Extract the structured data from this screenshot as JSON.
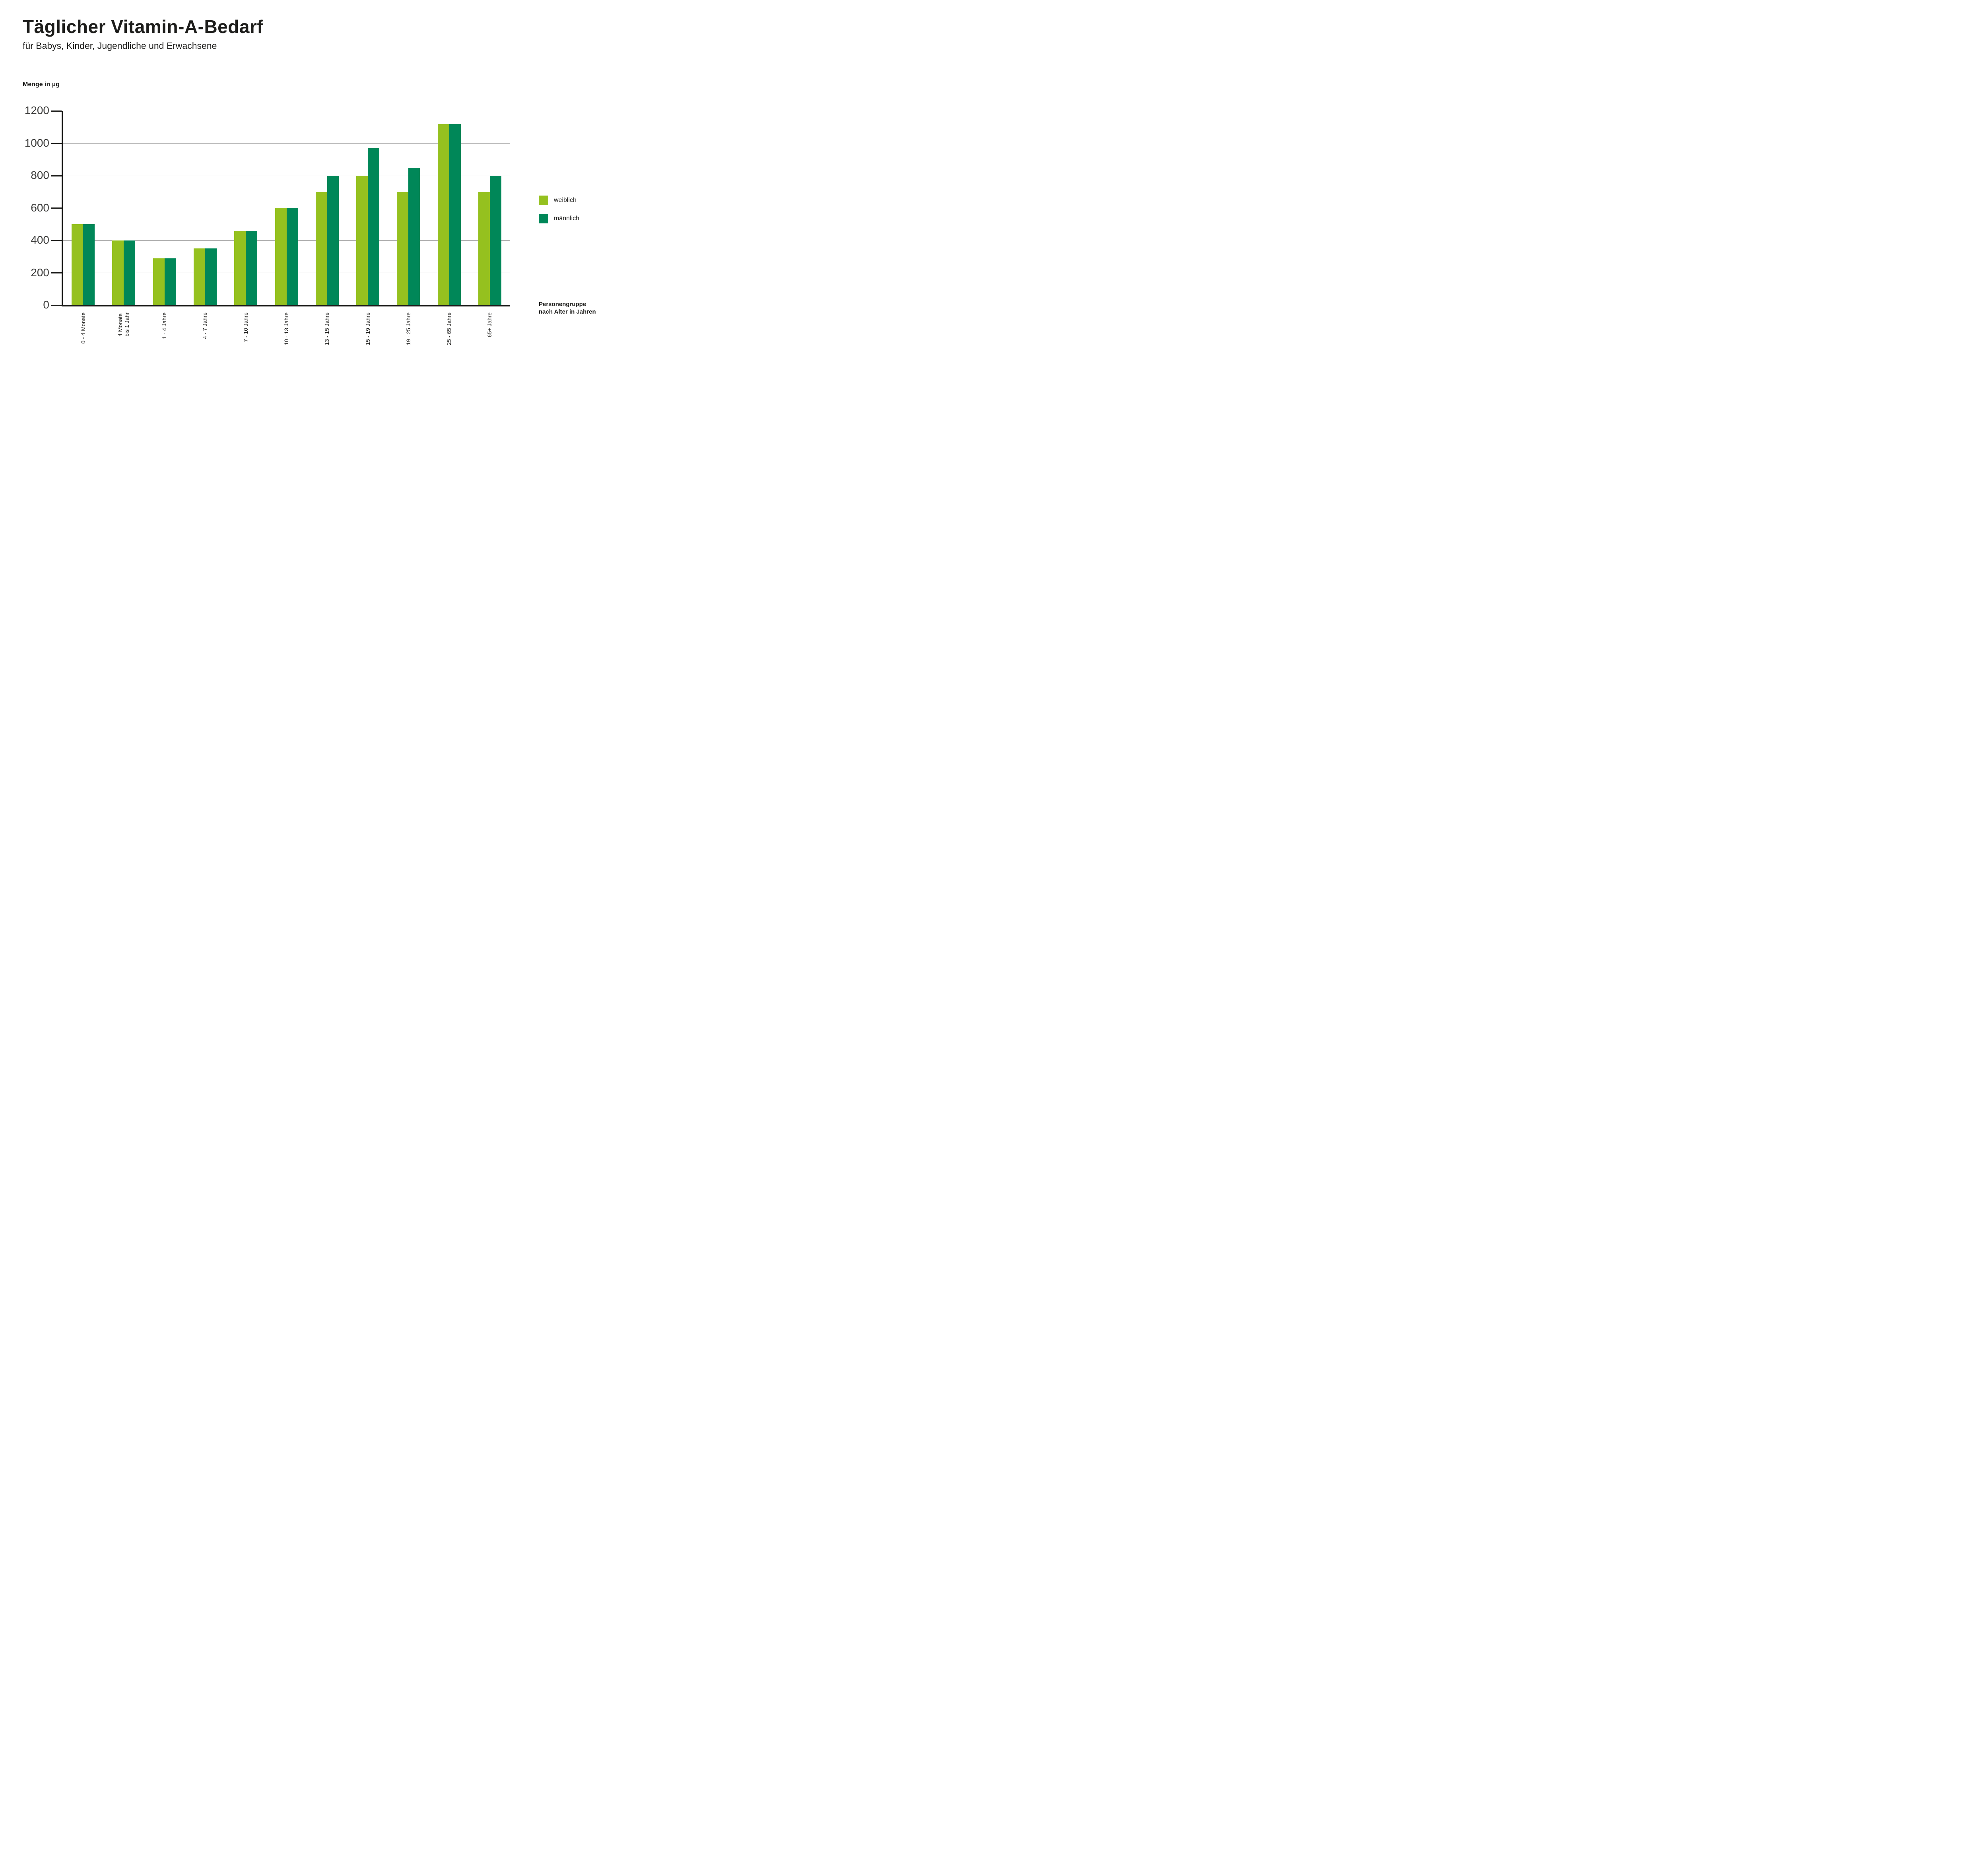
{
  "header": {
    "title": "Täglicher Vitamin-A-Bedarf",
    "subtitle": "für Babys, Kinder, Jugendliche und Erwachsene"
  },
  "chart_data": {
    "type": "bar",
    "title": "Täglicher Vitamin-A-Bedarf",
    "subtitle": "für Babys, Kinder, Jugendliche und Erwachsene",
    "ylabel": "Menge in µg",
    "xlabel": "Personengruppe nach Alter in Jahren",
    "ylim": [
      0,
      1200
    ],
    "ytick_step": 200,
    "yticks": [
      0,
      200,
      400,
      600,
      800,
      1000,
      1200
    ],
    "grid": true,
    "legend_position": "right",
    "categories": [
      "0 - 4 Monate",
      "4 Monate\nbis 1 Jahr",
      "1 - 4 Jahre",
      "4 - 7 Jahre",
      "7 - 10 Jahre",
      "10 - 13 Jahre",
      "13 - 15 Jahre",
      "15 - 19 Jahre",
      "19 - 25 Jahre",
      "25 - 65 Jahre",
      "65+ Jahre"
    ],
    "series": [
      {
        "name": "weiblich",
        "color": "#95C11F",
        "values": [
          500,
          400,
          290,
          350,
          460,
          600,
          700,
          800,
          700,
          1120,
          700
        ]
      },
      {
        "name": "männlich",
        "color": "#008758",
        "values": [
          500,
          400,
          290,
          350,
          460,
          600,
          800,
          970,
          850,
          1120,
          800
        ]
      }
    ]
  },
  "legend": {
    "items": [
      {
        "label": "weiblich",
        "color": "#95C11F"
      },
      {
        "label": "männlich",
        "color": "#008758"
      }
    ]
  },
  "notes": {
    "x_axis_note": "Personengruppe\nnach Alter in Jahren"
  },
  "colors": {
    "text": "#1d1d1b",
    "axis": "#1d1d1b",
    "gridline": "#7b7b7b",
    "ytick_text": "#3c3c3b",
    "background": "#ffffff"
  }
}
